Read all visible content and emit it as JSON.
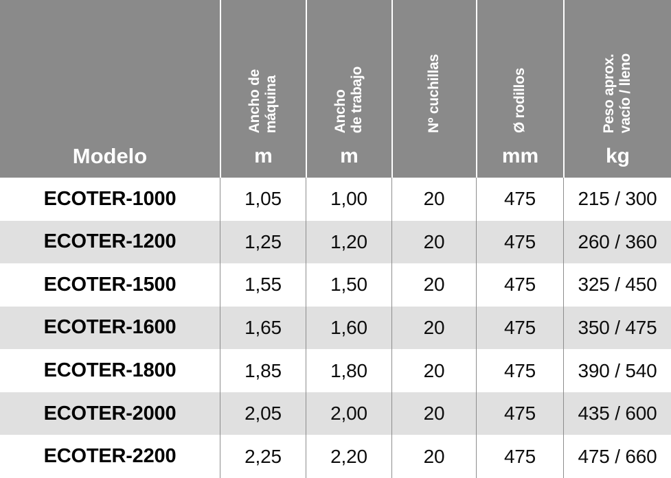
{
  "table": {
    "title_column_label": "Modelo",
    "columns": [
      {
        "id": "modelo",
        "rotated": "",
        "unit": ""
      },
      {
        "id": "ancho-maquina",
        "rotated": "Ancho de\nmáquina",
        "unit": "m"
      },
      {
        "id": "ancho-trabajo",
        "rotated": "Ancho\nde trabajo",
        "unit": "m"
      },
      {
        "id": "num-cuchillas",
        "rotated": "Nº cuchillas",
        "unit": ""
      },
      {
        "id": "diam-rodillos",
        "rotated": "Ø rodillos",
        "unit": "mm"
      },
      {
        "id": "peso-aprox",
        "rotated": "Peso aprox.\nvacío / lleno",
        "unit": "kg"
      }
    ],
    "rows": [
      [
        "ECOTER-1000",
        "1,05",
        "1,00",
        "20",
        "475",
        "215 / 300"
      ],
      [
        "ECOTER-1200",
        "1,25",
        "1,20",
        "20",
        "475",
        "260 / 360"
      ],
      [
        "ECOTER-1500",
        "1,55",
        "1,50",
        "20",
        "475",
        "325 / 450"
      ],
      [
        "ECOTER-1600",
        "1,65",
        "1,60",
        "20",
        "475",
        "350 / 475"
      ],
      [
        "ECOTER-1800",
        "1,85",
        "1,80",
        "20",
        "475",
        "390 / 540"
      ],
      [
        "ECOTER-2000",
        "2,05",
        "2,00",
        "20",
        "475",
        "435 / 600"
      ],
      [
        "ECOTER-2200",
        "2,25",
        "2,20",
        "20",
        "475",
        "475 / 660"
      ]
    ],
    "colors": {
      "header_bg": "#8a8a8a",
      "header_text": "#ffffff",
      "row_bg": "#ffffff",
      "row_alt_bg": "#e0e0e0",
      "body_text": "#0d0d0d",
      "header_divider": "#ffffff",
      "body_divider": "#8c8c8c"
    }
  }
}
